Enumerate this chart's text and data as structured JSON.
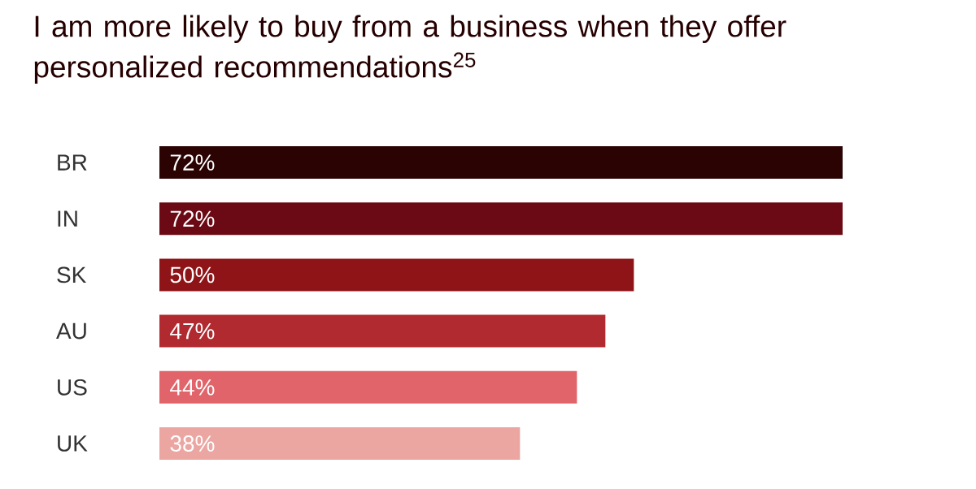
{
  "chart_data": {
    "type": "bar",
    "orientation": "horizontal",
    "title": "I am more likely to buy from a business when they offer personalized recommendations$^{25}$",
    "categories": [
      "BR",
      "IN",
      "SK",
      "AU",
      "US",
      "UK"
    ],
    "values": [
      72,
      72,
      50,
      47,
      44,
      38
    ],
    "value_labels": [
      "72%",
      "72%",
      "50%",
      "47%",
      "44%",
      "38%"
    ],
    "colors": [
      "#2b0303",
      "#6b0a14",
      "#8f1418",
      "#b02a30",
      "#e0646a",
      "#eba6a2"
    ]
  }
}
